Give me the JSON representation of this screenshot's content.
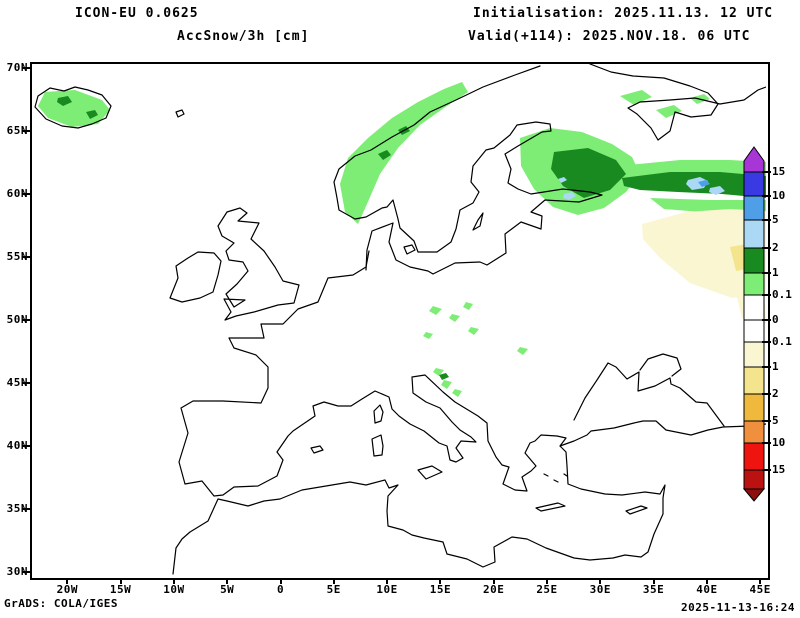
{
  "header": {
    "model": "ICON-EU 0.0625",
    "parameter": "AccSnow/3h [cm]",
    "init_line": "Initialisation: 2025.11.13. 12 UTC",
    "valid_line": "Valid(+114): 2025.NOV.18. 06 UTC"
  },
  "axes": {
    "lat_labels": [
      "70N",
      "65N",
      "60N",
      "55N",
      "50N",
      "45N",
      "40N",
      "35N",
      "30N"
    ],
    "lon_labels": [
      "20W",
      "15W",
      "10W",
      "5W",
      "0",
      "5E",
      "10E",
      "15E",
      "20E",
      "25E",
      "30E",
      "35E",
      "40E",
      "45E"
    ]
  },
  "colorbar": {
    "labels": [
      "15",
      "10",
      "5",
      "2",
      "1",
      "0.1",
      "0",
      "0.1",
      "1",
      "2",
      "5",
      "10",
      "15"
    ],
    "colors": [
      "#a835d6",
      "#3a3ae2",
      "#4f9fe8",
      "#abd8f5",
      "#188a20",
      "#7ded76",
      "#ffffff",
      "#ffffff",
      "#faf6d2",
      "#f5e48e",
      "#efb93d",
      "#f0903f",
      "#ee1511",
      "#bb1110",
      "#8c100d"
    ]
  },
  "map_overlays": {
    "colors": {
      "snow_light": "#7ded76",
      "snow_dark": "#188a20",
      "snow_heavy": "#abd8f5",
      "snow_intense": "#4f9fe8",
      "melt_light": "#faf6d2",
      "melt_mid": "#f5e48e"
    },
    "regions": [
      "Iceland light snow patch",
      "Norwegian coast snow band",
      "Finland / Gulf of Finland snow area",
      "Northwest Russia heavy snow band",
      "Central Europe and Alps snow specks",
      "Western Russia melt band"
    ]
  },
  "footer": {
    "credit": "GrADS: COLA/IGES",
    "timestamp": "2025-11-13-16:24"
  }
}
